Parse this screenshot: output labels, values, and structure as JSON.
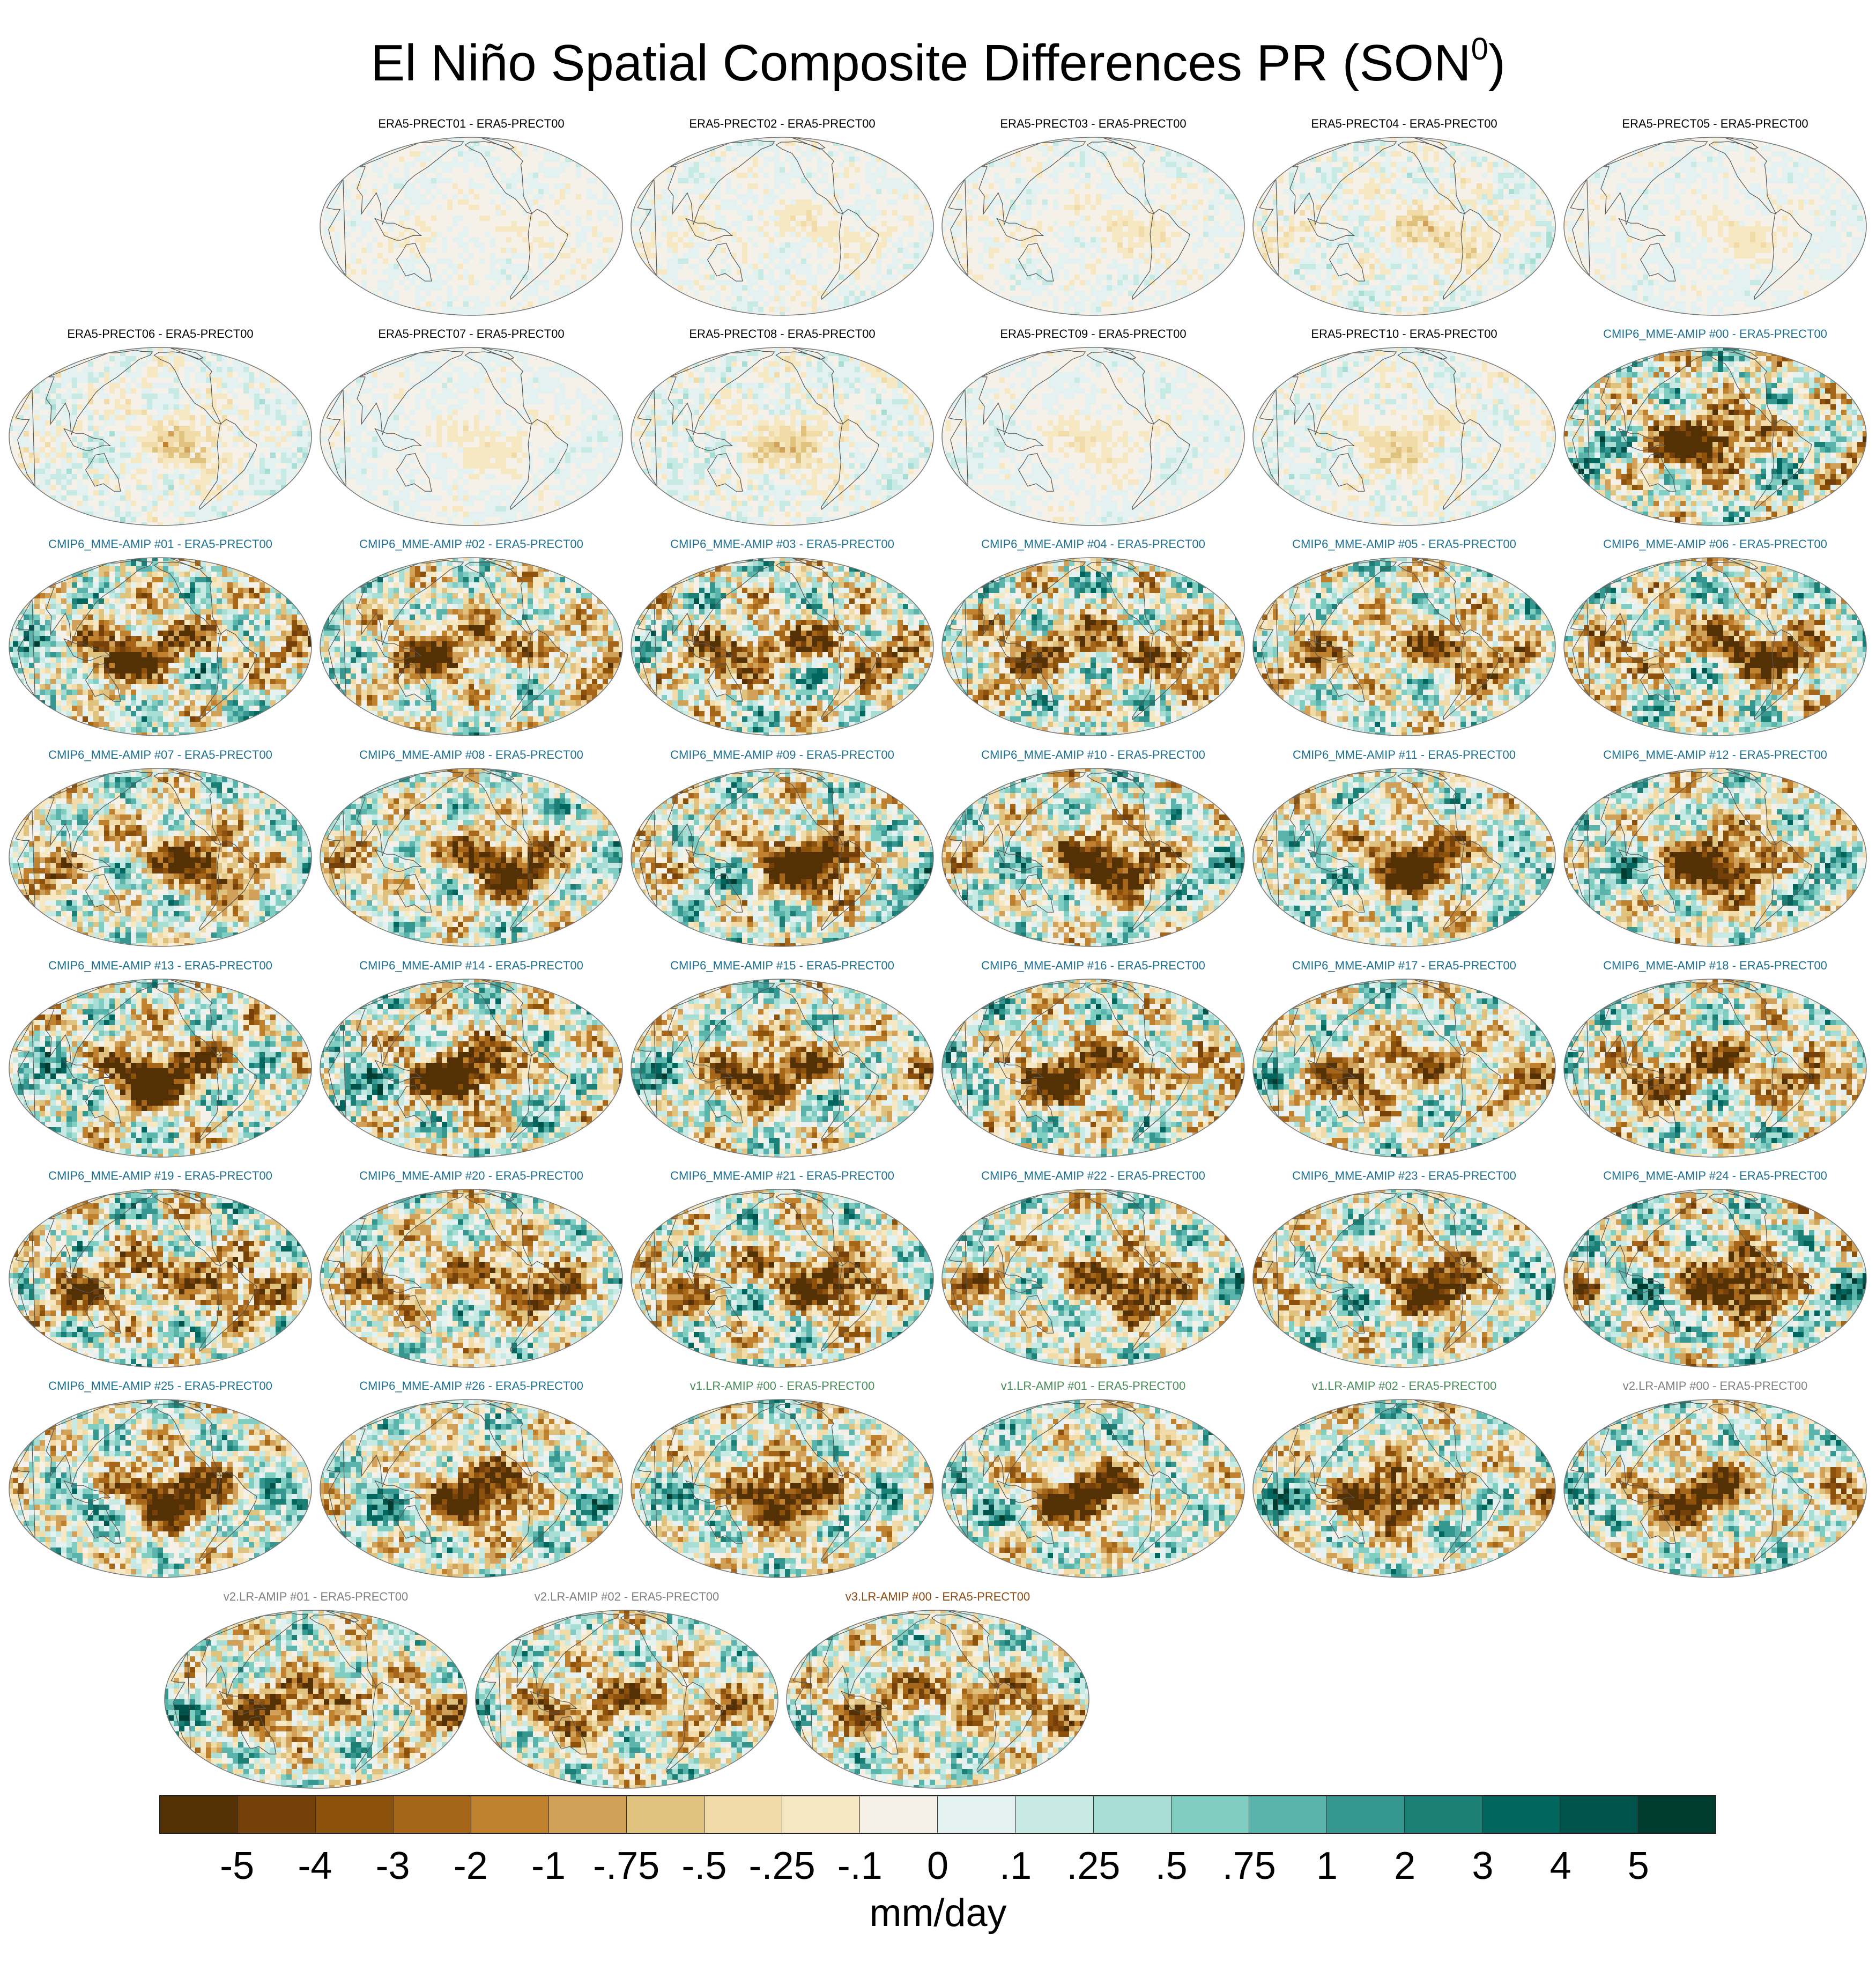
{
  "figure": {
    "title_main": "El Niño Spatial Composite Differences PR (SON",
    "title_sup": "0",
    "title_close": ")"
  },
  "panels": [
    {
      "label": "ERA5-PRECT01 - ERA5-PRECT00",
      "group": "era5",
      "amplitude": 0.25
    },
    {
      "label": "ERA5-PRECT02 - ERA5-PRECT00",
      "group": "era5",
      "amplitude": 0.3
    },
    {
      "label": "ERA5-PRECT03 - ERA5-PRECT00",
      "group": "era5",
      "amplitude": 0.3
    },
    {
      "label": "ERA5-PRECT04 - ERA5-PRECT00",
      "group": "era5",
      "amplitude": 0.45
    },
    {
      "label": "ERA5-PRECT05 - ERA5-PRECT00",
      "group": "era5",
      "amplitude": 0.25
    },
    {
      "label": "ERA5-PRECT06 - ERA5-PRECT00",
      "group": "era5",
      "amplitude": 0.45
    },
    {
      "label": "ERA5-PRECT07 - ERA5-PRECT00",
      "group": "era5",
      "amplitude": 0.25
    },
    {
      "label": "ERA5-PRECT08 - ERA5-PRECT00",
      "group": "era5",
      "amplitude": 0.45
    },
    {
      "label": "ERA5-PRECT09 - ERA5-PRECT00",
      "group": "era5",
      "amplitude": 0.25
    },
    {
      "label": "ERA5-PRECT10 - ERA5-PRECT00",
      "group": "era5",
      "amplitude": 0.4
    },
    {
      "label": "CMIP6_MME-AMIP  #00 - ERA5-PRECT00",
      "group": "cmip6",
      "amplitude": 1.0
    },
    {
      "label": "CMIP6_MME-AMIP  #01 - ERA5-PRECT00",
      "group": "cmip6",
      "amplitude": 1.0
    },
    {
      "label": "CMIP6_MME-AMIP  #02 - ERA5-PRECT00",
      "group": "cmip6",
      "amplitude": 0.9
    },
    {
      "label": "CMIP6_MME-AMIP  #03 - ERA5-PRECT00",
      "group": "cmip6",
      "amplitude": 1.0
    },
    {
      "label": "CMIP6_MME-AMIP  #04 - ERA5-PRECT00",
      "group": "cmip6",
      "amplitude": 1.0
    },
    {
      "label": "CMIP6_MME-AMIP  #05 - ERA5-PRECT00",
      "group": "cmip6",
      "amplitude": 0.9
    },
    {
      "label": "CMIP6_MME-AMIP  #06 - ERA5-PRECT00",
      "group": "cmip6",
      "amplitude": 1.0
    },
    {
      "label": "CMIP6_MME-AMIP  #07 - ERA5-PRECT00",
      "group": "cmip6",
      "amplitude": 0.9
    },
    {
      "label": "CMIP6_MME-AMIP  #08 - ERA5-PRECT00",
      "group": "cmip6",
      "amplitude": 0.9
    },
    {
      "label": "CMIP6_MME-AMIP  #09 - ERA5-PRECT00",
      "group": "cmip6",
      "amplitude": 1.0
    },
    {
      "label": "CMIP6_MME-AMIP  #10 - ERA5-PRECT00",
      "group": "cmip6",
      "amplitude": 0.9
    },
    {
      "label": "CMIP6_MME-AMIP  #11 - ERA5-PRECT00",
      "group": "cmip6",
      "amplitude": 0.9
    },
    {
      "label": "CMIP6_MME-AMIP  #12 - ERA5-PRECT00",
      "group": "cmip6",
      "amplitude": 0.9
    },
    {
      "label": "CMIP6_MME-AMIP  #13 - ERA5-PRECT00",
      "group": "cmip6",
      "amplitude": 1.0
    },
    {
      "label": "CMIP6_MME-AMIP  #14 - ERA5-PRECT00",
      "group": "cmip6",
      "amplitude": 1.0
    },
    {
      "label": "CMIP6_MME-AMIP  #15 - ERA5-PRECT00",
      "group": "cmip6",
      "amplitude": 0.9
    },
    {
      "label": "CMIP6_MME-AMIP  #16 - ERA5-PRECT00",
      "group": "cmip6",
      "amplitude": 1.0
    },
    {
      "label": "CMIP6_MME-AMIP  #17 - ERA5-PRECT00",
      "group": "cmip6",
      "amplitude": 0.9
    },
    {
      "label": "CMIP6_MME-AMIP  #18 - ERA5-PRECT00",
      "group": "cmip6",
      "amplitude": 1.0
    },
    {
      "label": "CMIP6_MME-AMIP  #19 - ERA5-PRECT00",
      "group": "cmip6",
      "amplitude": 1.0
    },
    {
      "label": "CMIP6_MME-AMIP  #20 - ERA5-PRECT00",
      "group": "cmip6",
      "amplitude": 0.9
    },
    {
      "label": "CMIP6_MME-AMIP  #21 - ERA5-PRECT00",
      "group": "cmip6",
      "amplitude": 1.0
    },
    {
      "label": "CMIP6_MME-AMIP  #22 - ERA5-PRECT00",
      "group": "cmip6",
      "amplitude": 0.9
    },
    {
      "label": "CMIP6_MME-AMIP  #23 - ERA5-PRECT00",
      "group": "cmip6",
      "amplitude": 0.9
    },
    {
      "label": "CMIP6_MME-AMIP  #24 - ERA5-PRECT00",
      "group": "cmip6",
      "amplitude": 1.0
    },
    {
      "label": "CMIP6_MME-AMIP  #25 - ERA5-PRECT00",
      "group": "cmip6",
      "amplitude": 0.9
    },
    {
      "label": "CMIP6_MME-AMIP  #26 - ERA5-PRECT00",
      "group": "cmip6",
      "amplitude": 0.9
    },
    {
      "label": "v1.LR-AMIP  #00 - ERA5-PRECT00",
      "group": "v1",
      "amplitude": 0.9
    },
    {
      "label": "v1.LR-AMIP  #01 - ERA5-PRECT00",
      "group": "v1",
      "amplitude": 0.9
    },
    {
      "label": "v1.LR-AMIP  #02 - ERA5-PRECT00",
      "group": "v1",
      "amplitude": 0.9
    },
    {
      "label": "v2.LR-AMIP  #00 - ERA5-PRECT00",
      "group": "v2",
      "amplitude": 0.9
    },
    {
      "label": "v2.LR-AMIP  #01 - ERA5-PRECT00",
      "group": "v2",
      "amplitude": 0.9
    },
    {
      "label": "v2.LR-AMIP  #02 - ERA5-PRECT00",
      "group": "v2",
      "amplitude": 0.9
    },
    {
      "label": "v3.LR-AMIP  #00 - ERA5-PRECT00",
      "group": "v3",
      "amplitude": 0.9
    }
  ],
  "group_colors": {
    "era5": "#000000",
    "cmip6": "#1f6f8f",
    "v1": "#4a8a5a",
    "v2": "#808080",
    "v3": "#8b4a10"
  },
  "colorbar": {
    "colors": [
      "#543005",
      "#754009",
      "#8c510a",
      "#a6661a",
      "#bf812d",
      "#d1a159",
      "#dfc27d",
      "#f0dba9",
      "#f6e8c3",
      "#f5f1e8",
      "#e3f2f0",
      "#c7eae5",
      "#a8ddd5",
      "#80cdc1",
      "#5ab4ac",
      "#35978f",
      "#1c7f76",
      "#01665e",
      "#00524a",
      "#003c30"
    ],
    "ticks": [
      "-5",
      "-4",
      "-3",
      "-2",
      "-1",
      "-.75",
      "-.5",
      "-.25",
      "-.1",
      "0",
      ".1",
      ".25",
      ".5",
      ".75",
      "1",
      "2",
      "3",
      "4",
      "5"
    ],
    "units": "mm/day"
  }
}
